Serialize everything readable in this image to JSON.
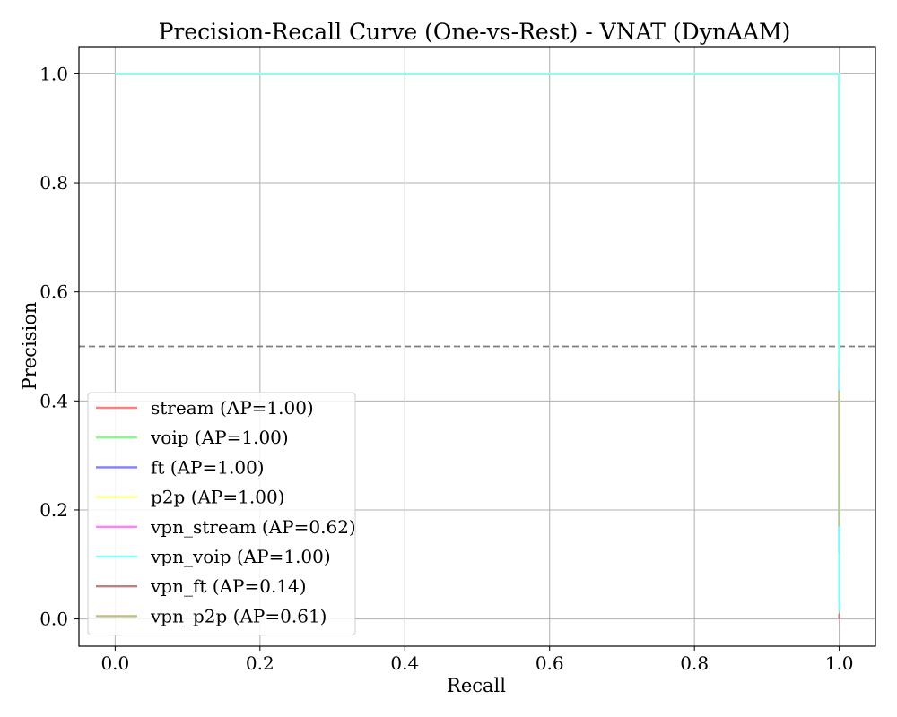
{
  "chart_data": {
    "type": "line",
    "title": "Precision-Recall Curve (One-vs-Rest) - VNAT (DynAAM)",
    "xlabel": "Recall",
    "ylabel": "Precision",
    "xlim": [
      -0.05,
      1.05
    ],
    "ylim": [
      -0.05,
      1.05
    ],
    "grid": true,
    "legend_position": "lower-left",
    "x_ticks": [
      0.0,
      0.2,
      0.4,
      0.6,
      0.8,
      1.0
    ],
    "y_ticks": [
      0.0,
      0.2,
      0.4,
      0.6,
      0.8,
      1.0
    ],
    "x_tick_labels": [
      "0.0",
      "0.2",
      "0.4",
      "0.6",
      "0.8",
      "1.0"
    ],
    "y_tick_labels": [
      "0.0",
      "0.2",
      "0.4",
      "0.6",
      "0.8",
      "1.0"
    ],
    "baseline": {
      "y": 0.5,
      "style": "dashed",
      "color": "#7f7f7f"
    },
    "series": [
      {
        "name": "stream (AP=1.00)",
        "color": "#ff7f7f",
        "x": [
          0.0,
          1.0,
          1.0
        ],
        "y": [
          1.0,
          1.0,
          0.72
        ]
      },
      {
        "name": "voip (AP=1.00)",
        "color": "#7fff7f",
        "x": [
          0.0,
          1.0,
          1.0
        ],
        "y": [
          1.0,
          1.0,
          0.5
        ]
      },
      {
        "name": "ft (AP=1.00)",
        "color": "#7f7fff",
        "x": [
          0.0,
          1.0,
          1.0
        ],
        "y": [
          1.0,
          1.0,
          0.12
        ]
      },
      {
        "name": "p2p (AP=1.00)",
        "color": "#ffff7f",
        "x": [
          0.0,
          1.0,
          1.0
        ],
        "y": [
          1.0,
          1.0,
          0.41
        ]
      },
      {
        "name": "vpn_stream (AP=0.62)",
        "color": "#ff7fff",
        "x": [
          1.0,
          1.0
        ],
        "y": [
          0.46,
          0.26
        ]
      },
      {
        "name": "vpn_voip (AP=1.00)",
        "color": "#7fffff",
        "x": [
          0.0,
          1.0,
          1.0
        ],
        "y": [
          1.0,
          1.0,
          0.015
        ]
      },
      {
        "name": "vpn_ft (AP=0.14)",
        "color": "#bf7f7f",
        "x": [
          1.0,
          1.0
        ],
        "y": [
          0.01,
          0.0
        ]
      },
      {
        "name": "vpn_p2p (AP=0.61)",
        "color": "#bfbf7f",
        "x": [
          1.0,
          1.0
        ],
        "y": [
          0.42,
          0.17
        ]
      }
    ]
  }
}
